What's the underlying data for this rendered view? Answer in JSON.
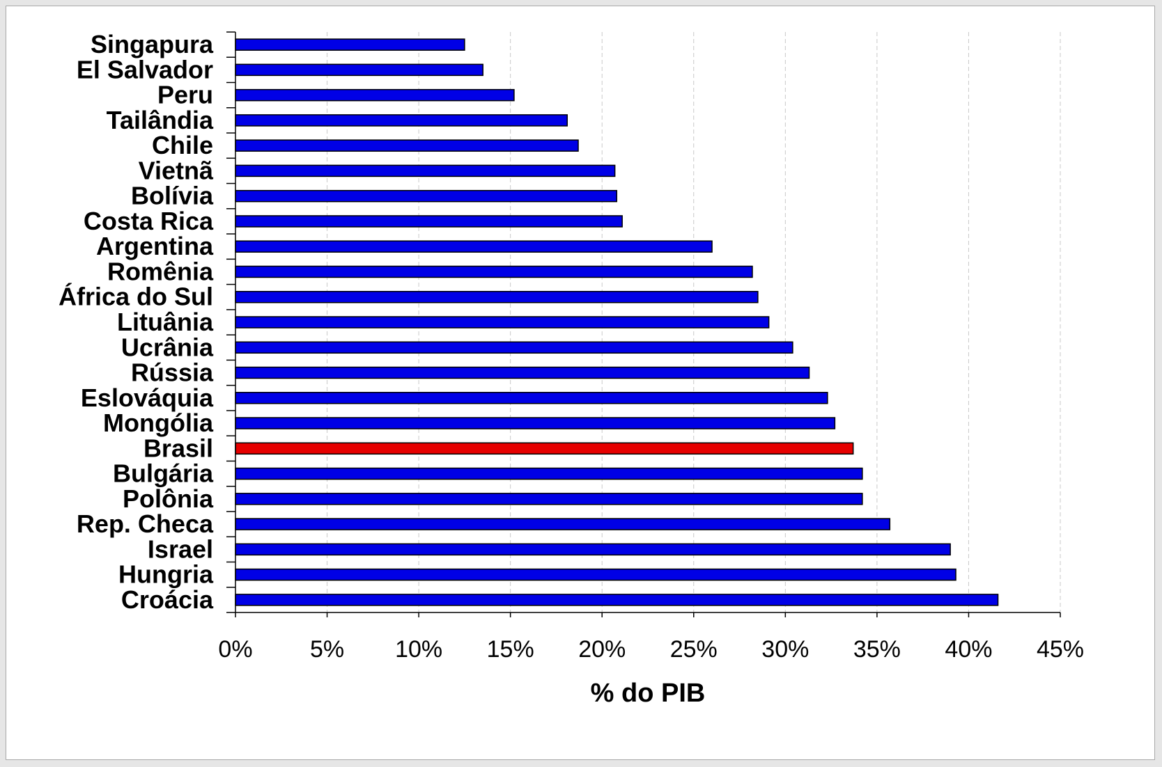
{
  "chart_data": {
    "type": "bar",
    "orientation": "horizontal",
    "categories": [
      "Singapura",
      "El Salvador",
      "Peru",
      "Tailândia",
      "Chile",
      "Vietnã",
      "Bolívia",
      "Costa Rica",
      "Argentina",
      "Romênia",
      "África do Sul",
      "Lituânia",
      "Ucrânia",
      "Rússia",
      "Eslováquia",
      "Mongólia",
      "Brasil",
      "Bulgária",
      "Polônia",
      "Rep. Checa",
      "Israel",
      "Hungria",
      "Croácia"
    ],
    "values": [
      12.5,
      13.5,
      15.2,
      18.1,
      18.7,
      20.7,
      20.8,
      21.1,
      26.0,
      28.2,
      28.5,
      29.1,
      30.4,
      31.3,
      32.3,
      32.7,
      33.7,
      34.2,
      34.2,
      35.7,
      39.0,
      39.3,
      41.6
    ],
    "highlight": "Brasil",
    "xlabel": "% do PIB",
    "xlim": [
      0,
      45
    ],
    "xticks": [
      "0%",
      "5%",
      "10%",
      "15%",
      "20%",
      "25%",
      "30%",
      "35%",
      "40%",
      "45%"
    ],
    "grid": "vertical dashed",
    "colors": {
      "bar": "#0000e6",
      "highlight": "#e60000",
      "bar_edge": "#000000",
      "grid": "#c8c8c8"
    }
  }
}
